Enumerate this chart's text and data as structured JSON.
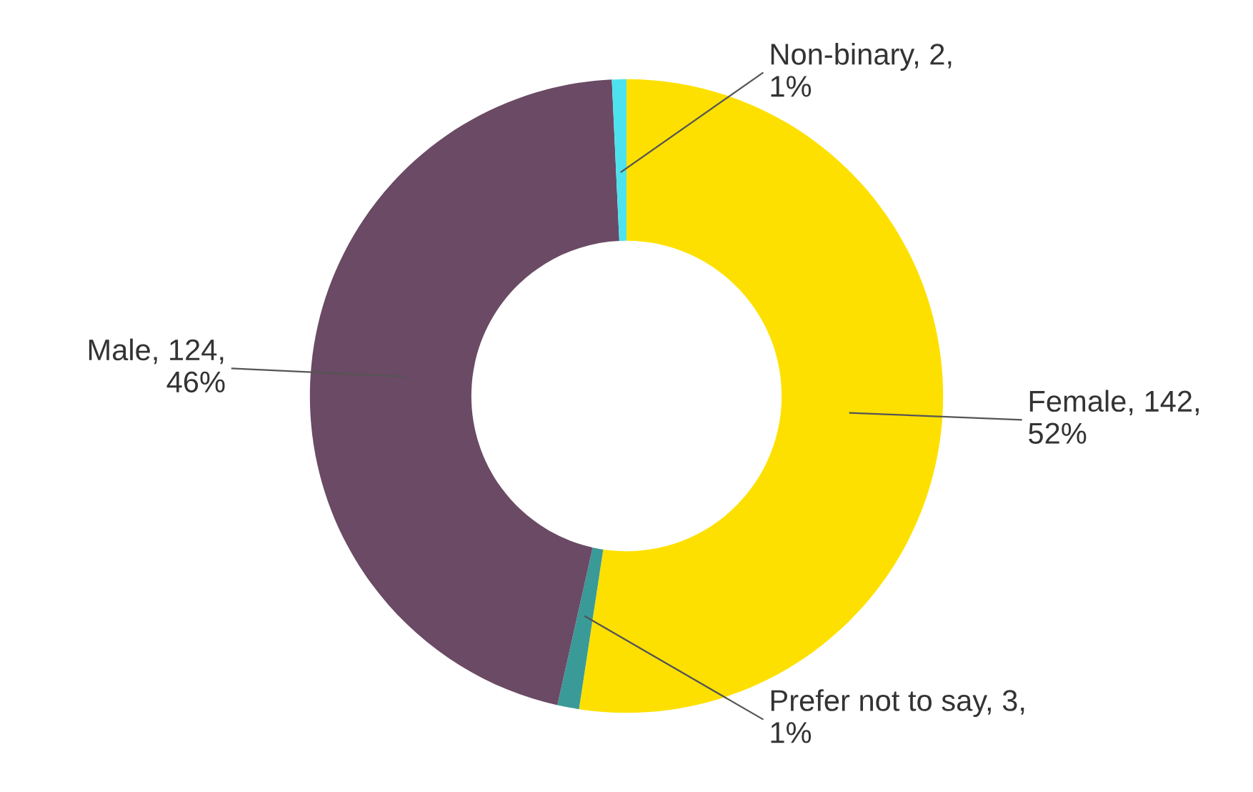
{
  "chart_data": {
    "type": "donut",
    "categories": [
      "Female",
      "Prefer not to say",
      "Male",
      "Non-binary"
    ],
    "values": [
      142,
      3,
      124,
      2
    ],
    "value_labels": [
      "142, 52%",
      "3, 1%",
      "124, 46%",
      "2, 1%"
    ],
    "colors": [
      "#fde000",
      "#3a9a98",
      "#6a4a64",
      "#4de3ee"
    ],
    "legend": false
  }
}
